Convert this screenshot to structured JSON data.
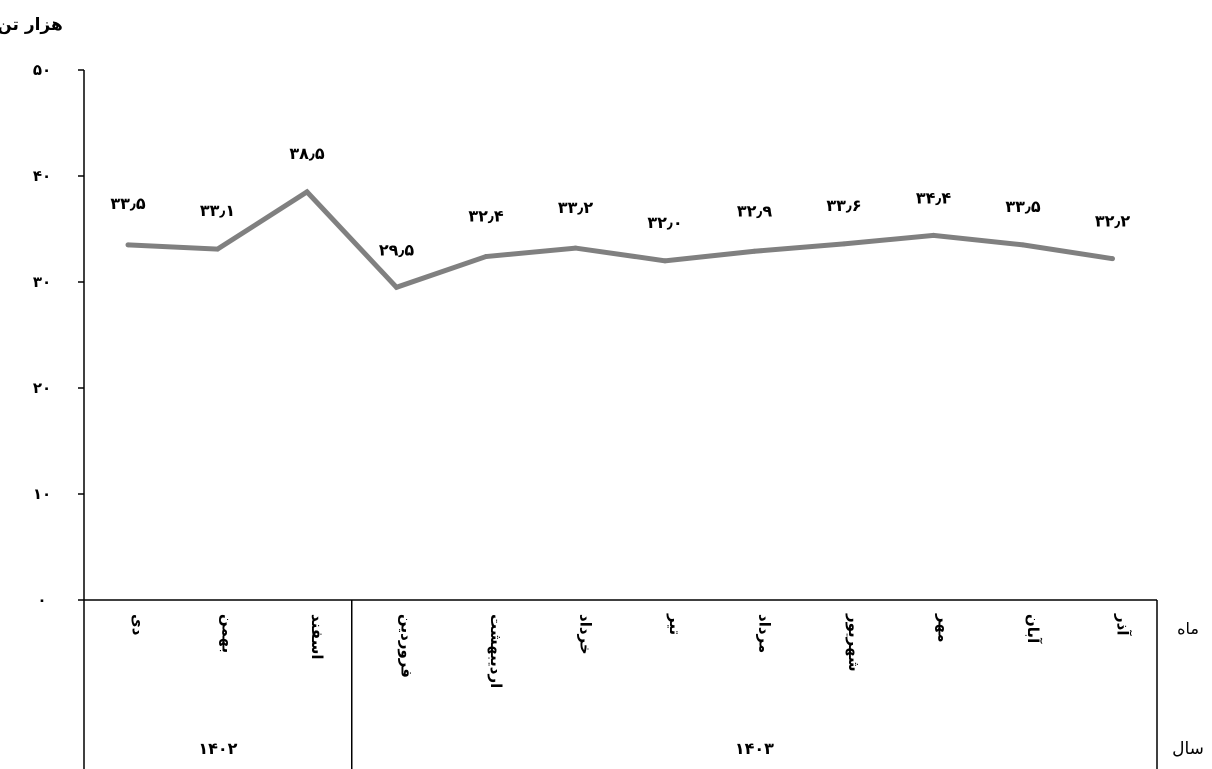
{
  "chart_data": {
    "type": "line",
    "ylabel": "هزار تن",
    "ylim": [
      0,
      50
    ],
    "y_ticks": [
      "۰",
      "۱۰",
      "۲۰",
      "۳۰",
      "۴۰",
      "۵۰"
    ],
    "y_tick_values": [
      0,
      10,
      20,
      30,
      40,
      50
    ],
    "grid": false,
    "categories": [
      "دی",
      "بهمن",
      "اسفند",
      "فروردین",
      "اردیبهشت",
      "خرداد",
      "تیر",
      "مرداد",
      "شهریور",
      "مهر",
      "آبان",
      "آذر"
    ],
    "values": [
      33.5,
      33.1,
      38.5,
      29.5,
      32.4,
      33.2,
      32.0,
      32.9,
      33.6,
      34.4,
      33.5,
      32.2
    ],
    "data_labels": [
      "۳۳٫۵",
      "۳۳٫۱",
      "۳۸٫۵",
      "۲۹٫۵",
      "۳۲٫۴",
      "۳۳٫۲",
      "۳۲٫۰",
      "۳۲٫۹",
      "۳۳٫۶",
      "۳۴٫۴",
      "۳۳٫۵",
      "۳۲٫۲"
    ],
    "years": [
      {
        "label": "۱۴۰۲",
        "count": 3
      },
      {
        "label": "۱۴۰۳",
        "count": 9
      }
    ],
    "row_labels": {
      "month": "ماه",
      "year": "سال"
    },
    "line_color": "#808080"
  }
}
